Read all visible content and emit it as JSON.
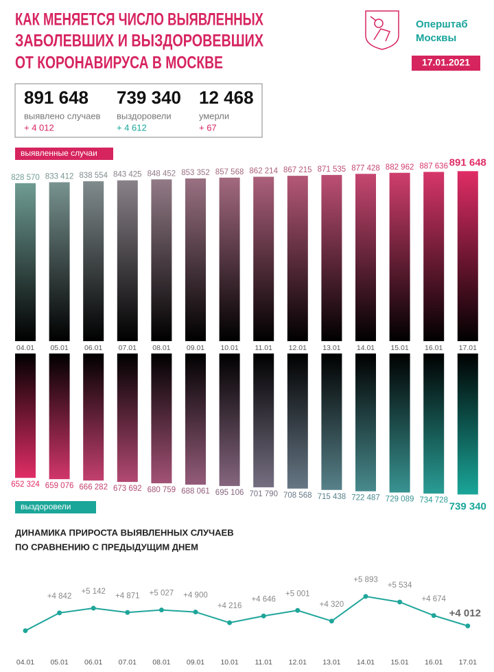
{
  "title": [
    "КАК МЕНЯЕТСЯ ЧИСЛО ВЫЯВЛЕННЫХ",
    "ЗАБОЛЕВШИХ И ВЫЗДОРОВЕВШИХ",
    "ОТ КОРОНАВИРУСА В МОСКВЕ"
  ],
  "brand": [
    "Оперштаб",
    "Москвы"
  ],
  "date": "17.01.2021",
  "summary": [
    {
      "value": "891 648",
      "label": "выявлено случаев",
      "delta": "+ 4 012"
    },
    {
      "value": "739 340",
      "label": "выздоровели",
      "delta": "+ 4 612"
    },
    {
      "value": "12 468",
      "label": "умерли",
      "delta": "+ 67"
    }
  ],
  "chart_data": [
    {
      "type": "bar",
      "label": "выявленные случаи",
      "categories": [
        "04.01",
        "05.01",
        "06.01",
        "07.01",
        "08.01",
        "09.01",
        "10.01",
        "11.01",
        "12.01",
        "13.01",
        "14.01",
        "15.01",
        "16.01",
        "17.01"
      ],
      "values": [
        828570,
        833412,
        838554,
        843425,
        848452,
        853352,
        857568,
        862214,
        867215,
        871535,
        877428,
        882962,
        887636,
        891648
      ],
      "value_labels": [
        "828 570",
        "833 412",
        "838 554",
        "843 425",
        "848 452",
        "853 352",
        "857 568",
        "862 214",
        "867 215",
        "871 535",
        "877 428",
        "882 962",
        "887 636",
        "891 648"
      ],
      "ylim": [
        0,
        900000
      ],
      "colors": [
        "#6f9c94",
        "#e02d66"
      ]
    },
    {
      "type": "bar",
      "label": "выздоровели",
      "values": [
        652324,
        659076,
        666282,
        673692,
        680759,
        688061,
        695106,
        701790,
        708568,
        715438,
        722487,
        729089,
        734728,
        739340
      ],
      "value_labels": [
        "652 324",
        "659 076",
        "666 282",
        "673 692",
        "680 759",
        "688 061",
        "695 106",
        "701 790",
        "708 568",
        "715 438",
        "722 487",
        "729 089",
        "734 728",
        "739 340"
      ],
      "ylim": [
        0,
        900000
      ],
      "colors": [
        "#e02d66",
        "#1aa699"
      ]
    },
    {
      "type": "line",
      "title": [
        "ДИНАМИКА ПРИРОСТА ВЫЯВЛЕННЫХ СЛУЧАЕВ",
        "ПО СРАВНЕНИЮ С ПРЕДЫДУЩИМ ДНЕМ"
      ],
      "categories": [
        "04.01",
        "05.01",
        "06.01",
        "07.01",
        "08.01",
        "09.01",
        "10.01",
        "11.01",
        "12.01",
        "13.01",
        "14.01",
        "15.01",
        "16.01",
        "17.01"
      ],
      "values": [
        3708,
        4842,
        5142,
        4871,
        5027,
        4900,
        4216,
        4646,
        5001,
        4320,
        5893,
        5534,
        4674,
        4012
      ],
      "value_labels": [
        null,
        "+4 842",
        "+5 142",
        "+4 871",
        "+5 027",
        "+4 900",
        "+4 216",
        "+4 646",
        "+5 001",
        "+4 320",
        "+5 893",
        "+5 534",
        "+4 674",
        "+4 012"
      ],
      "ylim": [
        3000,
        6500
      ],
      "color": "#1fa59a"
    }
  ]
}
